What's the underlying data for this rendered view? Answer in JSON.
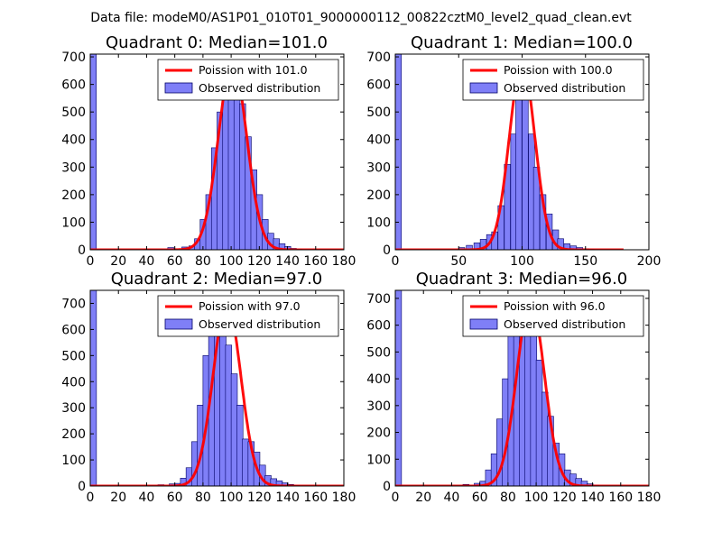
{
  "figure_title": "Data file: modeM0/AS1P01_010T01_9000000112_00822cztM0_level2_quad_clean.evt",
  "colors": {
    "bar_fill": "#7f7ff7",
    "bar_edge": "#000066",
    "poisson_line": "#ff0000"
  },
  "chart_data": [
    {
      "type": "bar+line",
      "title": "Quadrant 0: Median=101.0",
      "xlim": [
        0,
        180
      ],
      "ylim": [
        0,
        710
      ],
      "xticks": [
        "0",
        "20",
        "40",
        "60",
        "80",
        "100",
        "120",
        "140",
        "160",
        "180"
      ],
      "xtick_values": [
        0,
        20,
        40,
        60,
        80,
        100,
        120,
        140,
        160,
        180
      ],
      "yticks": [
        "0",
        "100",
        "200",
        "300",
        "400",
        "500",
        "600",
        "700"
      ],
      "ytick_values": [
        0,
        100,
        200,
        300,
        400,
        500,
        600,
        700
      ],
      "legend": {
        "position": "top-right",
        "line_label": "Poission with 101.0",
        "bar_label": "Observed distribution"
      },
      "mu": 101,
      "poisson_peak": 680,
      "bin_width": 4.3,
      "bins": [
        [
          0,
          710
        ],
        [
          38,
          2
        ],
        [
          55,
          8
        ],
        [
          65,
          10
        ],
        [
          70,
          14
        ],
        [
          74,
          40
        ],
        [
          78,
          110
        ],
        [
          82,
          200
        ],
        [
          86,
          370
        ],
        [
          90,
          500
        ],
        [
          94,
          660
        ],
        [
          98,
          600
        ],
        [
          102,
          600
        ],
        [
          106,
          530
        ],
        [
          110,
          410
        ],
        [
          114,
          290
        ],
        [
          118,
          200
        ],
        [
          122,
          110
        ],
        [
          126,
          60
        ],
        [
          130,
          40
        ],
        [
          134,
          22
        ],
        [
          138,
          12
        ],
        [
          142,
          5
        ],
        [
          146,
          2
        ]
      ],
      "poisson_x_range": [
        0,
        180
      ]
    },
    {
      "type": "bar+line",
      "title": "Quadrant 1: Median=100.0",
      "xlim": [
        0,
        200
      ],
      "ylim": [
        0,
        710
      ],
      "xticks": [
        "0",
        "50",
        "100",
        "150",
        "200"
      ],
      "xtick_values": [
        0,
        50,
        100,
        150,
        200
      ],
      "yticks": [
        "0",
        "100",
        "200",
        "300",
        "400",
        "500",
        "600",
        "700"
      ],
      "ytick_values": [
        0,
        100,
        200,
        300,
        400,
        500,
        600,
        700
      ],
      "legend": {
        "position": "top-right",
        "line_label": "Poission with 100.0",
        "bar_label": "Observed distribution"
      },
      "mu": 100,
      "poisson_peak": 680,
      "bin_width": 4.8,
      "bins": [
        [
          0,
          710
        ],
        [
          50,
          8
        ],
        [
          56,
          16
        ],
        [
          62,
          25
        ],
        [
          67,
          38
        ],
        [
          72,
          55
        ],
        [
          76,
          65
        ],
        [
          81,
          160
        ],
        [
          86,
          310
        ],
        [
          91,
          420
        ],
        [
          95,
          580
        ],
        [
          100,
          640
        ],
        [
          105,
          420
        ],
        [
          109,
          300
        ],
        [
          114,
          200
        ],
        [
          119,
          130
        ],
        [
          124,
          72
        ],
        [
          128,
          40
        ],
        [
          133,
          22
        ],
        [
          138,
          14
        ],
        [
          143,
          8
        ],
        [
          148,
          4
        ],
        [
          152,
          2
        ]
      ],
      "poisson_x_range": [
        0,
        180
      ]
    },
    {
      "type": "bar+line",
      "title": "Quadrant 2: Median=97.0",
      "xlim": [
        0,
        180
      ],
      "ylim": [
        0,
        750
      ],
      "xticks": [
        "0",
        "20",
        "40",
        "60",
        "80",
        "100",
        "120",
        "140",
        "160",
        "180"
      ],
      "xtick_values": [
        0,
        20,
        40,
        60,
        80,
        100,
        120,
        140,
        160,
        180
      ],
      "yticks": [
        "0",
        "100",
        "200",
        "300",
        "400",
        "500",
        "600",
        "700"
      ],
      "ytick_values": [
        0,
        100,
        200,
        300,
        400,
        500,
        600,
        700
      ],
      "legend": {
        "position": "top-right",
        "line_label": "Poission with 97.0",
        "bar_label": "Observed distribution"
      },
      "mu": 97,
      "poisson_peak": 700,
      "bin_width": 4.4,
      "bins": [
        [
          0,
          750
        ],
        [
          48,
          5
        ],
        [
          56,
          8
        ],
        [
          60,
          10
        ],
        [
          64,
          30
        ],
        [
          68,
          70
        ],
        [
          72,
          170
        ],
        [
          76,
          310
        ],
        [
          80,
          500
        ],
        [
          84,
          620
        ],
        [
          88,
          700
        ],
        [
          92,
          680
        ],
        [
          96,
          540
        ],
        [
          100,
          430
        ],
        [
          104,
          310
        ],
        [
          108,
          180
        ],
        [
          112,
          170
        ],
        [
          116,
          130
        ],
        [
          120,
          80
        ],
        [
          124,
          40
        ],
        [
          128,
          28
        ],
        [
          132,
          20
        ],
        [
          136,
          12
        ],
        [
          140,
          6
        ],
        [
          144,
          3
        ]
      ],
      "poisson_x_range": [
        0,
        180
      ]
    },
    {
      "type": "bar+line",
      "title": "Quadrant 3: Median=96.0",
      "xlim": [
        0,
        180
      ],
      "ylim": [
        0,
        730
      ],
      "xticks": [
        "0",
        "20",
        "40",
        "60",
        "80",
        "100",
        "120",
        "140",
        "160",
        "180"
      ],
      "xtick_values": [
        0,
        20,
        40,
        60,
        80,
        100,
        120,
        140,
        160,
        180
      ],
      "yticks": [
        "0",
        "100",
        "200",
        "300",
        "400",
        "500",
        "600",
        "700"
      ],
      "ytick_values": [
        0,
        100,
        200,
        300,
        400,
        500,
        600,
        700
      ],
      "legend": {
        "position": "top-right",
        "line_label": "Poission with 96.0",
        "bar_label": "Observed distribution"
      },
      "mu": 96,
      "poisson_peak": 690,
      "bin_width": 4.4,
      "bins": [
        [
          0,
          730
        ],
        [
          48,
          6
        ],
        [
          56,
          10
        ],
        [
          60,
          18
        ],
        [
          64,
          60
        ],
        [
          68,
          120
        ],
        [
          72,
          250
        ],
        [
          76,
          400
        ],
        [
          80,
          560
        ],
        [
          84,
          630
        ],
        [
          88,
          700
        ],
        [
          92,
          620
        ],
        [
          96,
          560
        ],
        [
          100,
          470
        ],
        [
          104,
          350
        ],
        [
          108,
          260
        ],
        [
          112,
          160
        ],
        [
          116,
          120
        ],
        [
          120,
          60
        ],
        [
          124,
          45
        ],
        [
          128,
          28
        ],
        [
          132,
          18
        ],
        [
          136,
          8
        ],
        [
          140,
          4
        ]
      ],
      "poisson_x_range": [
        0,
        180
      ]
    }
  ]
}
